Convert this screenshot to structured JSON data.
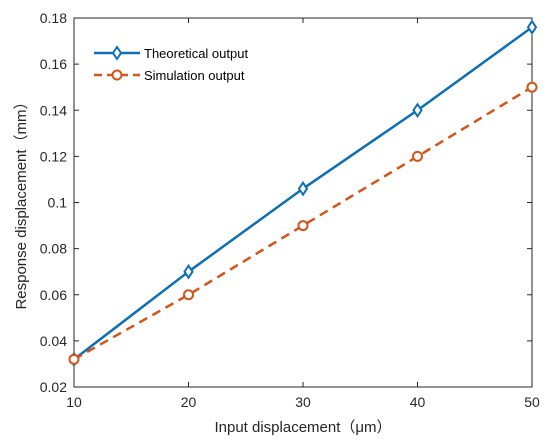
{
  "chart_data": {
    "type": "line",
    "x": [
      10,
      20,
      30,
      40,
      50
    ],
    "series": [
      {
        "name": "Theoretical output",
        "values": [
          0.032,
          0.07,
          0.106,
          0.14,
          0.176
        ],
        "color": "#0e6fb5",
        "line_style": "solid",
        "marker": "diamond"
      },
      {
        "name": "Simulation output",
        "values": [
          0.032,
          0.06,
          0.09,
          0.12,
          0.15
        ],
        "color": "#d4541a",
        "line_style": "dashed",
        "marker": "circle"
      }
    ],
    "xlabel": "Input displacement（μm）",
    "ylabel": "Response displacement（mm）",
    "xlim": [
      10,
      50
    ],
    "ylim": [
      0.02,
      0.18
    ],
    "xticks": [
      "10",
      "20",
      "30",
      "40",
      "50"
    ],
    "yticks": [
      "0.02",
      "0.04",
      "0.06",
      "0.08",
      "0.1",
      "0.12",
      "0.14",
      "0.16",
      "0.18"
    ],
    "grid": false,
    "legend_position": "top-left"
  }
}
